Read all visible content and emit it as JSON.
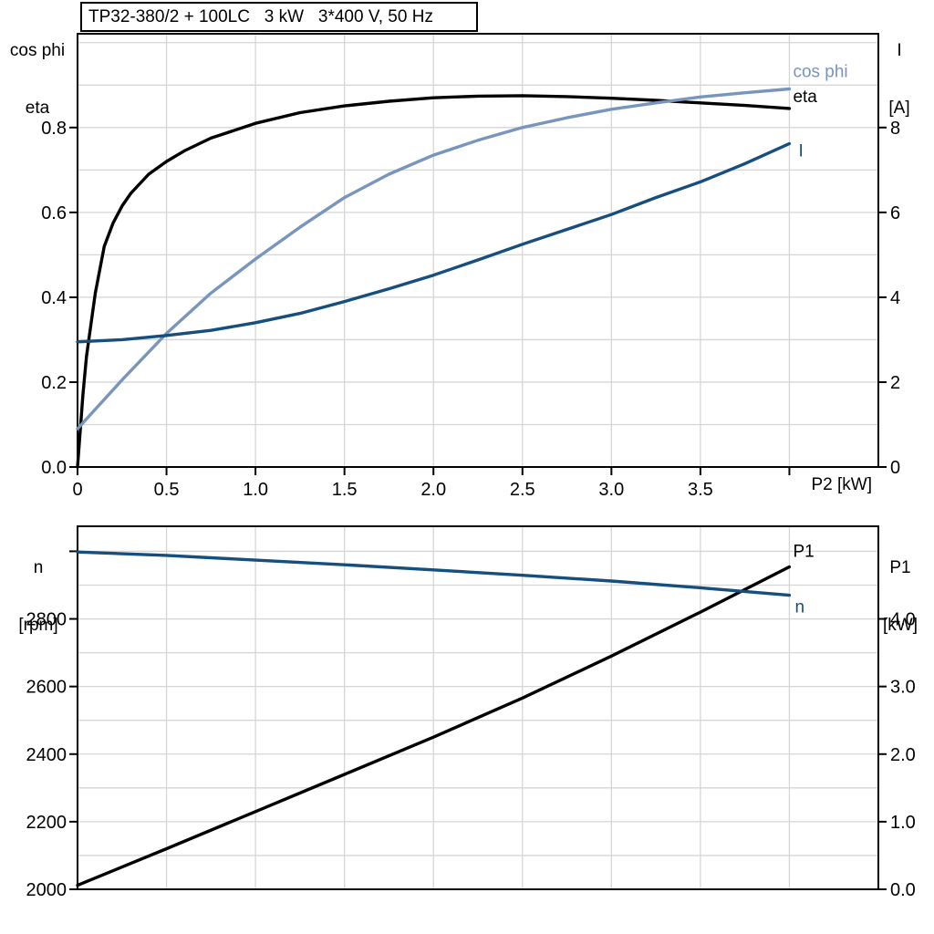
{
  "style": {
    "grid_color": "#d6d6d6",
    "axis_color": "#000000",
    "background": "#ffffff",
    "accent_dark_blue": "#164e7e",
    "accent_light_blue": "#7896bd"
  },
  "chart_data": [
    {
      "name": "motor-curves-top",
      "type": "line",
      "title": "TP32-380/2 + 100LC   3 kW   3*400 V, 50 Hz",
      "xlabel": "P2 [kW]",
      "grid": true,
      "x_axis": {
        "range": [
          0,
          4.5
        ],
        "grid_step": 0.5,
        "ticks": [
          {
            "v": 0,
            "label": "0"
          },
          {
            "v": 0.5,
            "label": "0.5"
          },
          {
            "v": 1,
            "label": "1.0"
          },
          {
            "v": 1.5,
            "label": "1.5"
          },
          {
            "v": 2,
            "label": "2.0"
          },
          {
            "v": 2.5,
            "label": "2.5"
          },
          {
            "v": 3,
            "label": "3.0"
          },
          {
            "v": 3.5,
            "label": "3.5"
          },
          {
            "v": 4,
            "label": ""
          }
        ]
      },
      "left_axis": {
        "header": [
          "cos phi",
          "eta"
        ],
        "range": [
          0,
          1.021
        ],
        "grid_step": 0.1,
        "ticks": [
          {
            "v": 0.0,
            "label": "0.0"
          },
          {
            "v": 0.2,
            "label": "0.2"
          },
          {
            "v": 0.4,
            "label": "0.4"
          },
          {
            "v": 0.6,
            "label": "0.6"
          },
          {
            "v": 0.8,
            "label": "0.8"
          }
        ]
      },
      "right_axis": {
        "header": [
          "I",
          "[A]"
        ],
        "range": [
          0,
          10.21
        ],
        "grid_step": 1,
        "ticks": [
          {
            "v": 0,
            "label": "0"
          },
          {
            "v": 2,
            "label": "2"
          },
          {
            "v": 4,
            "label": "4"
          },
          {
            "v": 6,
            "label": "6"
          },
          {
            "v": 8,
            "label": "8"
          }
        ]
      },
      "series": [
        {
          "name": "eta",
          "label": "eta",
          "axis": "left",
          "color": "#000000",
          "label_offset": [
            4,
            -7
          ],
          "points": [
            [
              0,
              0
            ],
            [
              0.03,
              0.17
            ],
            [
              0.05,
              0.26
            ],
            [
              0.08,
              0.35
            ],
            [
              0.1,
              0.41
            ],
            [
              0.15,
              0.52
            ],
            [
              0.2,
              0.575
            ],
            [
              0.25,
              0.615
            ],
            [
              0.3,
              0.645
            ],
            [
              0.4,
              0.69
            ],
            [
              0.5,
              0.72
            ],
            [
              0.6,
              0.745
            ],
            [
              0.75,
              0.775
            ],
            [
              1.0,
              0.81
            ],
            [
              1.25,
              0.835
            ],
            [
              1.5,
              0.851
            ],
            [
              1.75,
              0.862
            ],
            [
              2.0,
              0.87
            ],
            [
              2.25,
              0.874
            ],
            [
              2.5,
              0.875
            ],
            [
              2.75,
              0.873
            ],
            [
              3.0,
              0.869
            ],
            [
              3.25,
              0.864
            ],
            [
              3.5,
              0.858
            ],
            [
              3.75,
              0.852
            ],
            [
              4.0,
              0.845
            ]
          ]
        },
        {
          "name": "cos phi",
          "label": "cos phi",
          "axis": "left",
          "color": "#7896bd",
          "label_offset": [
            4,
            -13
          ],
          "points": [
            [
              0,
              0.09
            ],
            [
              0.25,
              0.205
            ],
            [
              0.5,
              0.315
            ],
            [
              0.75,
              0.41
            ],
            [
              1.0,
              0.49
            ],
            [
              1.25,
              0.565
            ],
            [
              1.5,
              0.635
            ],
            [
              1.75,
              0.69
            ],
            [
              2.0,
              0.735
            ],
            [
              2.25,
              0.77
            ],
            [
              2.5,
              0.8
            ],
            [
              2.75,
              0.823
            ],
            [
              3.0,
              0.843
            ],
            [
              3.25,
              0.858
            ],
            [
              3.5,
              0.872
            ],
            [
              3.75,
              0.882
            ],
            [
              4.0,
              0.891
            ]
          ]
        },
        {
          "name": "I",
          "label": "I",
          "axis": "right",
          "color": "#164e7e",
          "label_offset": [
            10,
            14
          ],
          "points": [
            [
              0,
              2.95
            ],
            [
              0.25,
              3.0
            ],
            [
              0.5,
              3.1
            ],
            [
              0.75,
              3.22
            ],
            [
              1.0,
              3.4
            ],
            [
              1.25,
              3.62
            ],
            [
              1.5,
              3.9
            ],
            [
              1.75,
              4.2
            ],
            [
              2.0,
              4.52
            ],
            [
              2.25,
              4.88
            ],
            [
              2.5,
              5.25
            ],
            [
              2.75,
              5.6
            ],
            [
              3.0,
              5.95
            ],
            [
              3.25,
              6.35
            ],
            [
              3.5,
              6.72
            ],
            [
              3.75,
              7.15
            ],
            [
              4.0,
              7.62
            ]
          ]
        }
      ]
    },
    {
      "name": "speed-power-bottom",
      "type": "line",
      "title": "",
      "xlabel": "",
      "grid": true,
      "x_axis": {
        "range": [
          0,
          4.5
        ],
        "grid_step": 0.5,
        "ticks": []
      },
      "left_axis": {
        "header": [
          "n",
          "[rpm]"
        ],
        "range": [
          2000,
          3074
        ],
        "grid_step": 100,
        "ticks": [
          {
            "v": 2000,
            "label": "2000"
          },
          {
            "v": 2200,
            "label": "2200"
          },
          {
            "v": 2400,
            "label": "2400"
          },
          {
            "v": 2600,
            "label": "2600"
          },
          {
            "v": 2800,
            "label": "2800"
          },
          {
            "v": 3000,
            "label": ""
          }
        ]
      },
      "right_axis": {
        "header": [
          "P1",
          "[kW]"
        ],
        "range": [
          0,
          5.37
        ],
        "grid_step": 0.5,
        "ticks": [
          {
            "v": 0,
            "label": "0.0"
          },
          {
            "v": 1,
            "label": "1.0"
          },
          {
            "v": 2,
            "label": "2.0"
          },
          {
            "v": 3,
            "label": "3.0"
          },
          {
            "v": 4,
            "label": "4.0"
          }
        ]
      },
      "series": [
        {
          "name": "P1",
          "label": "P1",
          "axis": "right",
          "color": "#000000",
          "label_offset": [
            4,
            -11
          ],
          "points": [
            [
              0,
              0.06
            ],
            [
              0.5,
              0.6
            ],
            [
              1.0,
              1.15
            ],
            [
              1.5,
              1.7
            ],
            [
              2.0,
              2.25
            ],
            [
              2.5,
              2.83
            ],
            [
              3.0,
              3.45
            ],
            [
              3.5,
              4.1
            ],
            [
              4.0,
              4.77
            ]
          ]
        },
        {
          "name": "n",
          "label": "n",
          "axis": "left",
          "color": "#164e7e",
          "label_offset": [
            6,
            19
          ],
          "points": [
            [
              0,
              2998
            ],
            [
              0.5,
              2988
            ],
            [
              1.0,
              2974
            ],
            [
              1.5,
              2960
            ],
            [
              2.0,
              2945
            ],
            [
              2.5,
              2929
            ],
            [
              3.0,
              2912
            ],
            [
              3.5,
              2892
            ],
            [
              4.0,
              2870
            ]
          ]
        }
      ]
    }
  ]
}
